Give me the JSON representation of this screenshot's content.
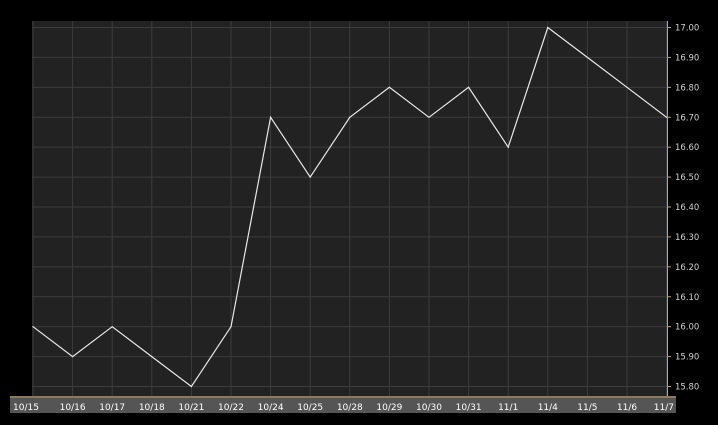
{
  "chart_data": {
    "type": "line",
    "title": "",
    "xlabel": "",
    "ylabel": "",
    "categories": [
      "10/15",
      "10/16",
      "10/17",
      "10/18",
      "10/21",
      "10/22",
      "10/24",
      "10/25",
      "10/28",
      "10/29",
      "10/30",
      "10/31",
      "11/1",
      "11/4",
      "11/5",
      "11/6",
      "11/7"
    ],
    "series": [
      {
        "values": [
          16.0,
          15.9,
          16.0,
          15.9,
          15.8,
          16.0,
          16.7,
          16.5,
          16.7,
          16.8,
          16.7,
          16.8,
          16.6,
          17.0,
          16.9,
          16.8,
          16.7
        ]
      }
    ],
    "ylim": [
      15.78,
      17.02
    ],
    "yticks": [
      "15.80",
      "15.90",
      "16.00",
      "16.10",
      "16.20",
      "16.30",
      "16.40",
      "16.50",
      "16.60",
      "16.70",
      "16.80",
      "16.90",
      "17.00"
    ],
    "grid": true,
    "y_axis_side": "right",
    "legend": "none"
  },
  "colors": {
    "background": "#000000",
    "plot_background": "#222222",
    "grid": "#3c3c3c",
    "line": "#e8e8e8",
    "axis_bar": "#555555",
    "axis_accent": "#c8a060",
    "tick_text": "#ffffff"
  }
}
